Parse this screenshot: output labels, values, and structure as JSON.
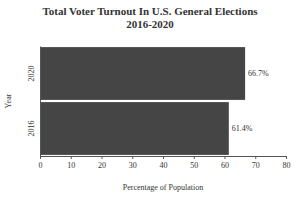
{
  "chart_data": {
    "type": "bar",
    "title": "Total Voter Turnout In U.S. General Elections 2016-2020",
    "x_label": "Percentage of Population",
    "y_label": "Year",
    "categories": [
      "2020",
      "2016"
    ],
    "values": [
      66.7,
      61.4
    ],
    "value_labels": [
      "66.7%",
      "61.4%"
    ],
    "color": "#454545",
    "orientation": "horizontal",
    "data_labels": true,
    "grid": false,
    "xlim": [
      0,
      80
    ],
    "xticks": [
      0,
      10,
      20,
      30,
      40,
      50,
      60,
      70,
      80
    ]
  }
}
